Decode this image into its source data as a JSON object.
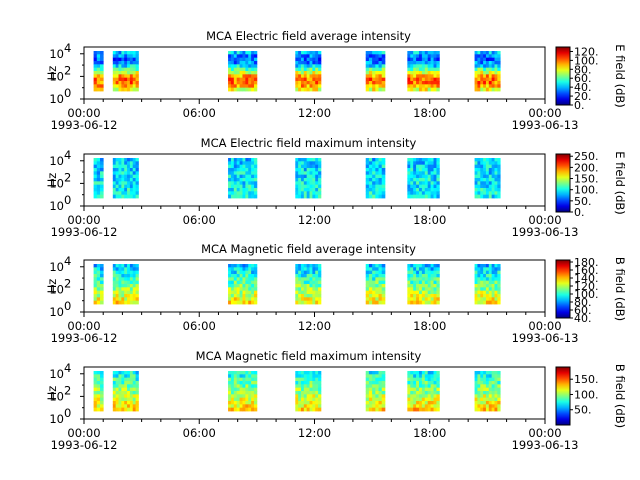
{
  "chart_data": [
    {
      "type": "heatmap",
      "title": "MCA  Electric field average intensity",
      "ylabel": "Hz",
      "yscale": "log",
      "y_ticks": [
        "10",
        "10",
        "10"
      ],
      "y_tick_exponents": [
        "0",
        "2",
        "4"
      ],
      "x_ticks": [
        "00:00",
        "06:00",
        "12:00",
        "18:00",
        "00:00"
      ],
      "x_date_labels": [
        "1993-06-12",
        "1993-06-13"
      ],
      "xlim": [
        "1993-06-12 00:00",
        "1993-06-13 00:00"
      ],
      "colorbar": {
        "label": "E field (dB)",
        "ticks": [
          "120.",
          "100.",
          "80.",
          "60.",
          "40.",
          "20.",
          "0."
        ],
        "range": [
          0,
          130
        ]
      },
      "data_intervals": [
        [
          "00:30",
          "01:00"
        ],
        [
          "01:30",
          "02:50"
        ],
        [
          "07:30",
          "09:00"
        ],
        [
          "11:00",
          "12:20"
        ],
        [
          "14:40",
          "15:40"
        ],
        [
          "16:50",
          "18:30"
        ],
        [
          "20:20",
          "21:40"
        ]
      ],
      "colormap": "jet"
    },
    {
      "type": "heatmap",
      "title": "MCA  Electric field maximum intensity",
      "ylabel": "Hz",
      "yscale": "log",
      "y_ticks": [
        "10",
        "10",
        "10"
      ],
      "y_tick_exponents": [
        "0",
        "2",
        "4"
      ],
      "x_ticks": [
        "00:00",
        "06:00",
        "12:00",
        "18:00",
        "00:00"
      ],
      "x_date_labels": [
        "1993-06-12",
        "1993-06-13"
      ],
      "xlim": [
        "1993-06-12 00:00",
        "1993-06-13 00:00"
      ],
      "colorbar": {
        "label": "E field (dB)",
        "ticks": [
          "250.",
          "200.",
          "150.",
          "100.",
          "50.",
          "0."
        ],
        "range": [
          0,
          260
        ]
      },
      "data_intervals": [
        [
          "00:30",
          "01:00"
        ],
        [
          "01:30",
          "02:50"
        ],
        [
          "07:30",
          "09:00"
        ],
        [
          "11:00",
          "12:20"
        ],
        [
          "14:40",
          "15:40"
        ],
        [
          "16:50",
          "18:30"
        ],
        [
          "20:20",
          "21:40"
        ]
      ],
      "colormap": "jet"
    },
    {
      "type": "heatmap",
      "title": "MCA  Magnetic field average intensity",
      "ylabel": "Hz",
      "yscale": "log",
      "y_ticks": [
        "10",
        "10",
        "10"
      ],
      "y_tick_exponents": [
        "0",
        "2",
        "4"
      ],
      "x_ticks": [
        "00:00",
        "06:00",
        "12:00",
        "18:00",
        "00:00"
      ],
      "x_date_labels": [
        "1993-06-12",
        "1993-06-13"
      ],
      "xlim": [
        "1993-06-12 00:00",
        "1993-06-13 00:00"
      ],
      "colorbar": {
        "label": "B field (dB)",
        "ticks": [
          "180.",
          "160.",
          "140.",
          "120.",
          "100.",
          "80.",
          "60.",
          "40."
        ],
        "range": [
          40,
          185
        ]
      },
      "data_intervals": [
        [
          "00:30",
          "01:00"
        ],
        [
          "01:30",
          "02:50"
        ],
        [
          "07:30",
          "09:00"
        ],
        [
          "11:00",
          "12:20"
        ],
        [
          "14:40",
          "15:40"
        ],
        [
          "16:50",
          "18:30"
        ],
        [
          "20:20",
          "21:40"
        ]
      ],
      "colormap": "jet"
    },
    {
      "type": "heatmap",
      "title": "MCA  Magnetic field maximum intensity",
      "ylabel": "Hz",
      "yscale": "log",
      "y_ticks": [
        "10",
        "10",
        "10"
      ],
      "y_tick_exponents": [
        "0",
        "2",
        "4"
      ],
      "x_ticks": [
        "00:00",
        "06:00",
        "12:00",
        "18:00",
        "00:00"
      ],
      "x_date_labels": [
        "1993-06-12",
        "1993-06-13"
      ],
      "xlim": [
        "1993-06-12 00:00",
        "1993-06-13 00:00"
      ],
      "colorbar": {
        "label": "B field (dB)",
        "ticks": [
          "150.",
          "100.",
          "50."
        ],
        "range": [
          0,
          190
        ]
      },
      "data_intervals": [
        [
          "00:30",
          "01:00"
        ],
        [
          "01:30",
          "02:50"
        ],
        [
          "07:30",
          "09:00"
        ],
        [
          "11:00",
          "12:20"
        ],
        [
          "14:40",
          "15:40"
        ],
        [
          "16:50",
          "18:30"
        ],
        [
          "20:20",
          "21:40"
        ]
      ],
      "colormap": "jet"
    }
  ]
}
